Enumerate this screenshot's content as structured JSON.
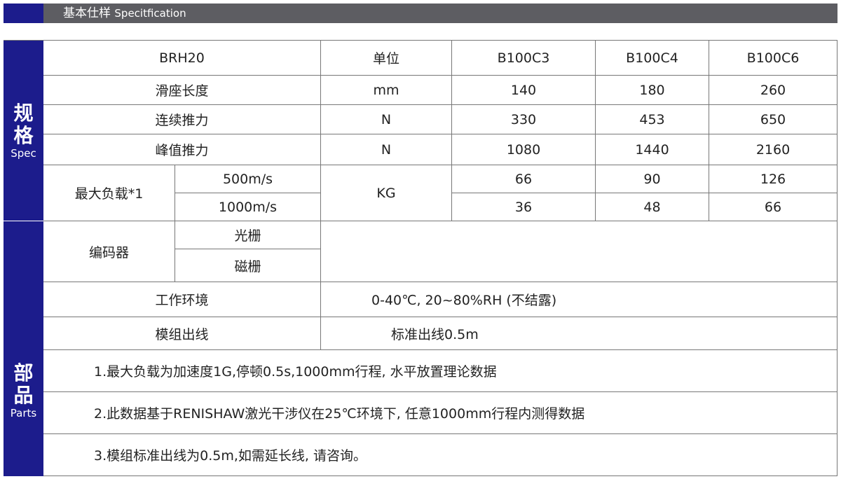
{
  "header": {
    "title_zh": "基本仕样",
    "title_en": "Specitfication"
  },
  "sections": {
    "spec": {
      "zh1": "规",
      "zh2": "格",
      "en": "Spec"
    },
    "parts": {
      "zh1": "部",
      "zh2": "品",
      "en": "Parts"
    }
  },
  "table": {
    "model": "BRH20",
    "unit_header": "单位",
    "columns": [
      "B100C3",
      "B100C4",
      "B100C6"
    ],
    "rows": [
      {
        "label": "滑座长度",
        "unit": "mm",
        "values": [
          "140",
          "180",
          "260"
        ]
      },
      {
        "label": "连续推力",
        "unit": "N",
        "values": [
          "330",
          "453",
          "650"
        ]
      },
      {
        "label": "峰值推力",
        "unit": "N",
        "values": [
          "1080",
          "1440",
          "2160"
        ]
      }
    ],
    "max_load": {
      "label": "最大负载*1",
      "unit": "KG",
      "sub": [
        {
          "label": "500m/s",
          "values": [
            "66",
            "90",
            "126"
          ]
        },
        {
          "label": "1000m/s",
          "values": [
            "36",
            "48",
            "66"
          ]
        }
      ]
    },
    "encoder": {
      "label": "编码器",
      "sub": [
        "光栅",
        "磁栅"
      ]
    },
    "environment": {
      "label": "工作环境",
      "value": "0-40℃, 20~80%RH (不结露)"
    },
    "cable": {
      "label": "模组出线",
      "value": "标准出线0.5m"
    },
    "notes": [
      "1.最大负载为加速度1G,停顿0.5s,1000mm行程, 水平放置理论数据",
      "2.此数据基于RENISHAW激光干涉仪在25℃环境下, 任意1000mm行程内测得数据",
      "3.模组标准出线为0.5m,如需延长线, 请咨询。"
    ]
  }
}
